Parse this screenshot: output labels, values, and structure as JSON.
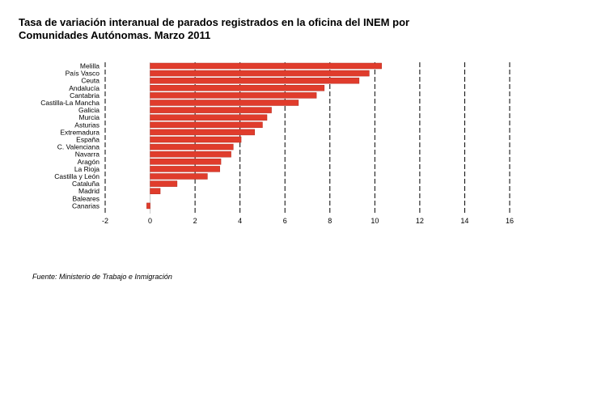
{
  "title_line1": "Tasa de variación interanual de parados registrados en la oficina del INEM por",
  "title_line2": "Comunidades Autónomas. Marzo 2011",
  "source": "Fuente: Ministerio de Trabajo e Inmigración",
  "chart_data": {
    "type": "bar",
    "orientation": "horizontal",
    "categories": [
      "Melilla",
      "País Vasco",
      "Ceuta",
      "Andalucía",
      "Cantabria",
      "Castilla-La Mancha",
      "Galicia",
      "Murcia",
      "Asturias",
      "Extremadura",
      "España",
      "C. Valenciana",
      "Navarra",
      "Aragón",
      "La Rioja",
      "Castilla y León",
      "Cataluña",
      "Madrid",
      "Baleares",
      "Canarias"
    ],
    "values": [
      10.3,
      9.75,
      9.3,
      7.75,
      7.4,
      6.6,
      5.4,
      5.2,
      5.0,
      4.65,
      4.05,
      3.7,
      3.6,
      3.15,
      3.1,
      2.55,
      1.2,
      0.45,
      0.0,
      -0.15
    ],
    "xlim": [
      -2,
      16
    ],
    "xticks": [
      -2,
      0,
      2,
      4,
      6,
      8,
      10,
      12,
      14,
      16
    ],
    "grid": "vertical dashed",
    "bar_color": "#e03c2c",
    "legend": "none",
    "xlabel": "",
    "ylabel": ""
  }
}
